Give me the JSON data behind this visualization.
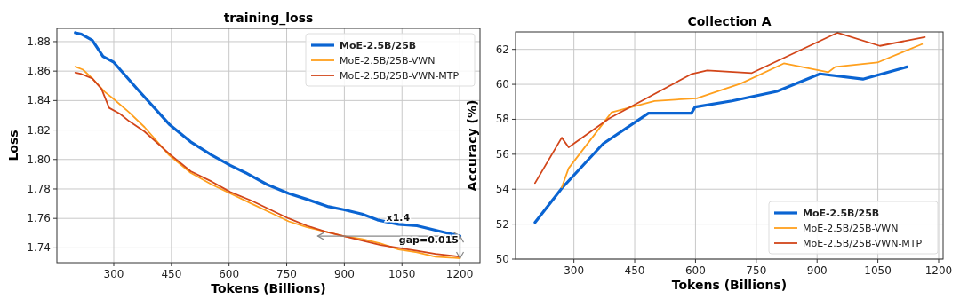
{
  "chart_data": [
    {
      "type": "line",
      "title": "training_loss",
      "xlabel": "Tokens (Billions)",
      "ylabel": "Loss",
      "xlim": [
        152,
        1253
      ],
      "xticks": [
        300,
        450,
        600,
        750,
        900,
        1050,
        1200
      ],
      "ylim": [
        1.73,
        1.889
      ],
      "yticks": [
        1.74,
        1.76,
        1.78,
        {
          "value": 1.8,
          "label": "1.80"
        },
        1.82,
        1.84,
        1.86,
        1.88
      ],
      "grid": true,
      "legend": "top right",
      "annotations": [
        {
          "text": "x1.4",
          "x": 1040,
          "y": 1.757
        },
        "gap=0.015"
      ],
      "series": [
        {
          "name": "MoE-2.5B/25B",
          "color": "#0a64d2",
          "x": [
            200,
            216,
            244,
            272,
            300,
            364,
            444,
            500,
            555,
            603,
            643,
            699,
            755,
            803,
            859,
            898,
            946,
            986,
            1041,
            1089,
            1137,
            1201
          ],
          "values": [
            1.886,
            1.885,
            1.881,
            1.87,
            1.866,
            1.847,
            1.824,
            1.812,
            1.803,
            1.796,
            1.791,
            1.783,
            1.777,
            1.773,
            1.768,
            1.766,
            1.763,
            1.759,
            1.756,
            1.755,
            1.752,
            1.748
          ]
        },
        {
          "name": "MoE-2.5B/25B-VWN",
          "color": "#ffa01e",
          "x": [
            200,
            220,
            244,
            276,
            300,
            340,
            380,
            444,
            500,
            555,
            603,
            659,
            707,
            755,
            803,
            851,
            898,
            946,
            994,
            1041,
            1089,
            1137,
            1201
          ],
          "values": [
            1.863,
            1.861,
            1.855,
            1.846,
            1.841,
            1.832,
            1.822,
            1.803,
            1.791,
            1.783,
            1.777,
            1.77,
            1.764,
            1.758,
            1.754,
            1.751,
            1.748,
            1.746,
            1.743,
            1.739,
            1.737,
            1.734,
            1.733
          ]
        },
        {
          "name": "MoE-2.5B/25B-VWN-MTP",
          "color": "#d2461a",
          "x": [
            200,
            216,
            244,
            268,
            288,
            316,
            340,
            380,
            444,
            500,
            555,
            603,
            659,
            707,
            755,
            803,
            851,
            898,
            946,
            994,
            1041,
            1089,
            1137,
            1201
          ],
          "values": [
            1.859,
            1.858,
            1.855,
            1.848,
            1.835,
            1.831,
            1.826,
            1.819,
            1.804,
            1.792,
            1.785,
            1.778,
            1.772,
            1.766,
            1.76,
            1.755,
            1.751,
            1.748,
            1.745,
            1.742,
            1.74,
            1.738,
            1.736,
            1.734
          ]
        }
      ]
    },
    {
      "type": "line",
      "title": "Collection A",
      "xlabel": "Tokens (Billions)",
      "ylabel": "Accuracy (%)",
      "xlim": [
        156,
        1211
      ],
      "xticks": [
        300,
        450,
        600,
        750,
        900,
        1050,
        1200
      ],
      "ylim": [
        50,
        63
      ],
      "yticks": [
        50,
        52,
        54,
        56,
        58,
        60,
        62
      ],
      "grid": true,
      "legend": "bottom right",
      "series": [
        {
          "name": "MoE-2.5B/25B",
          "color": "#0a64d2",
          "x": [
            204,
            270,
            372,
            484,
            590,
            599,
            690,
            801,
            907,
            1013,
            1122
          ],
          "values": [
            52.1,
            54.05,
            56.6,
            58.35,
            58.35,
            58.7,
            59.05,
            59.6,
            60.6,
            60.3,
            61.0
          ]
        },
        {
          "name": "MoE-2.5B/25B-VWN",
          "color": "#ffa01e",
          "x": [
            270,
            287,
            393,
            499,
            603,
            712,
            818,
            928,
            945,
            1049,
            1159
          ],
          "values": [
            54.1,
            55.2,
            58.4,
            59.05,
            59.2,
            60.05,
            61.2,
            60.7,
            61.0,
            61.25,
            62.3
          ]
        },
        {
          "name": "MoE-2.5B/25B-VWN-MTP",
          "color": "#d2461a",
          "x": [
            204,
            270,
            287,
            387,
            591,
            629,
            739,
            950,
            1055,
            1166
          ],
          "values": [
            54.35,
            56.95,
            56.4,
            58.05,
            60.6,
            60.8,
            60.65,
            62.95,
            62.2,
            62.7
          ]
        }
      ]
    }
  ]
}
